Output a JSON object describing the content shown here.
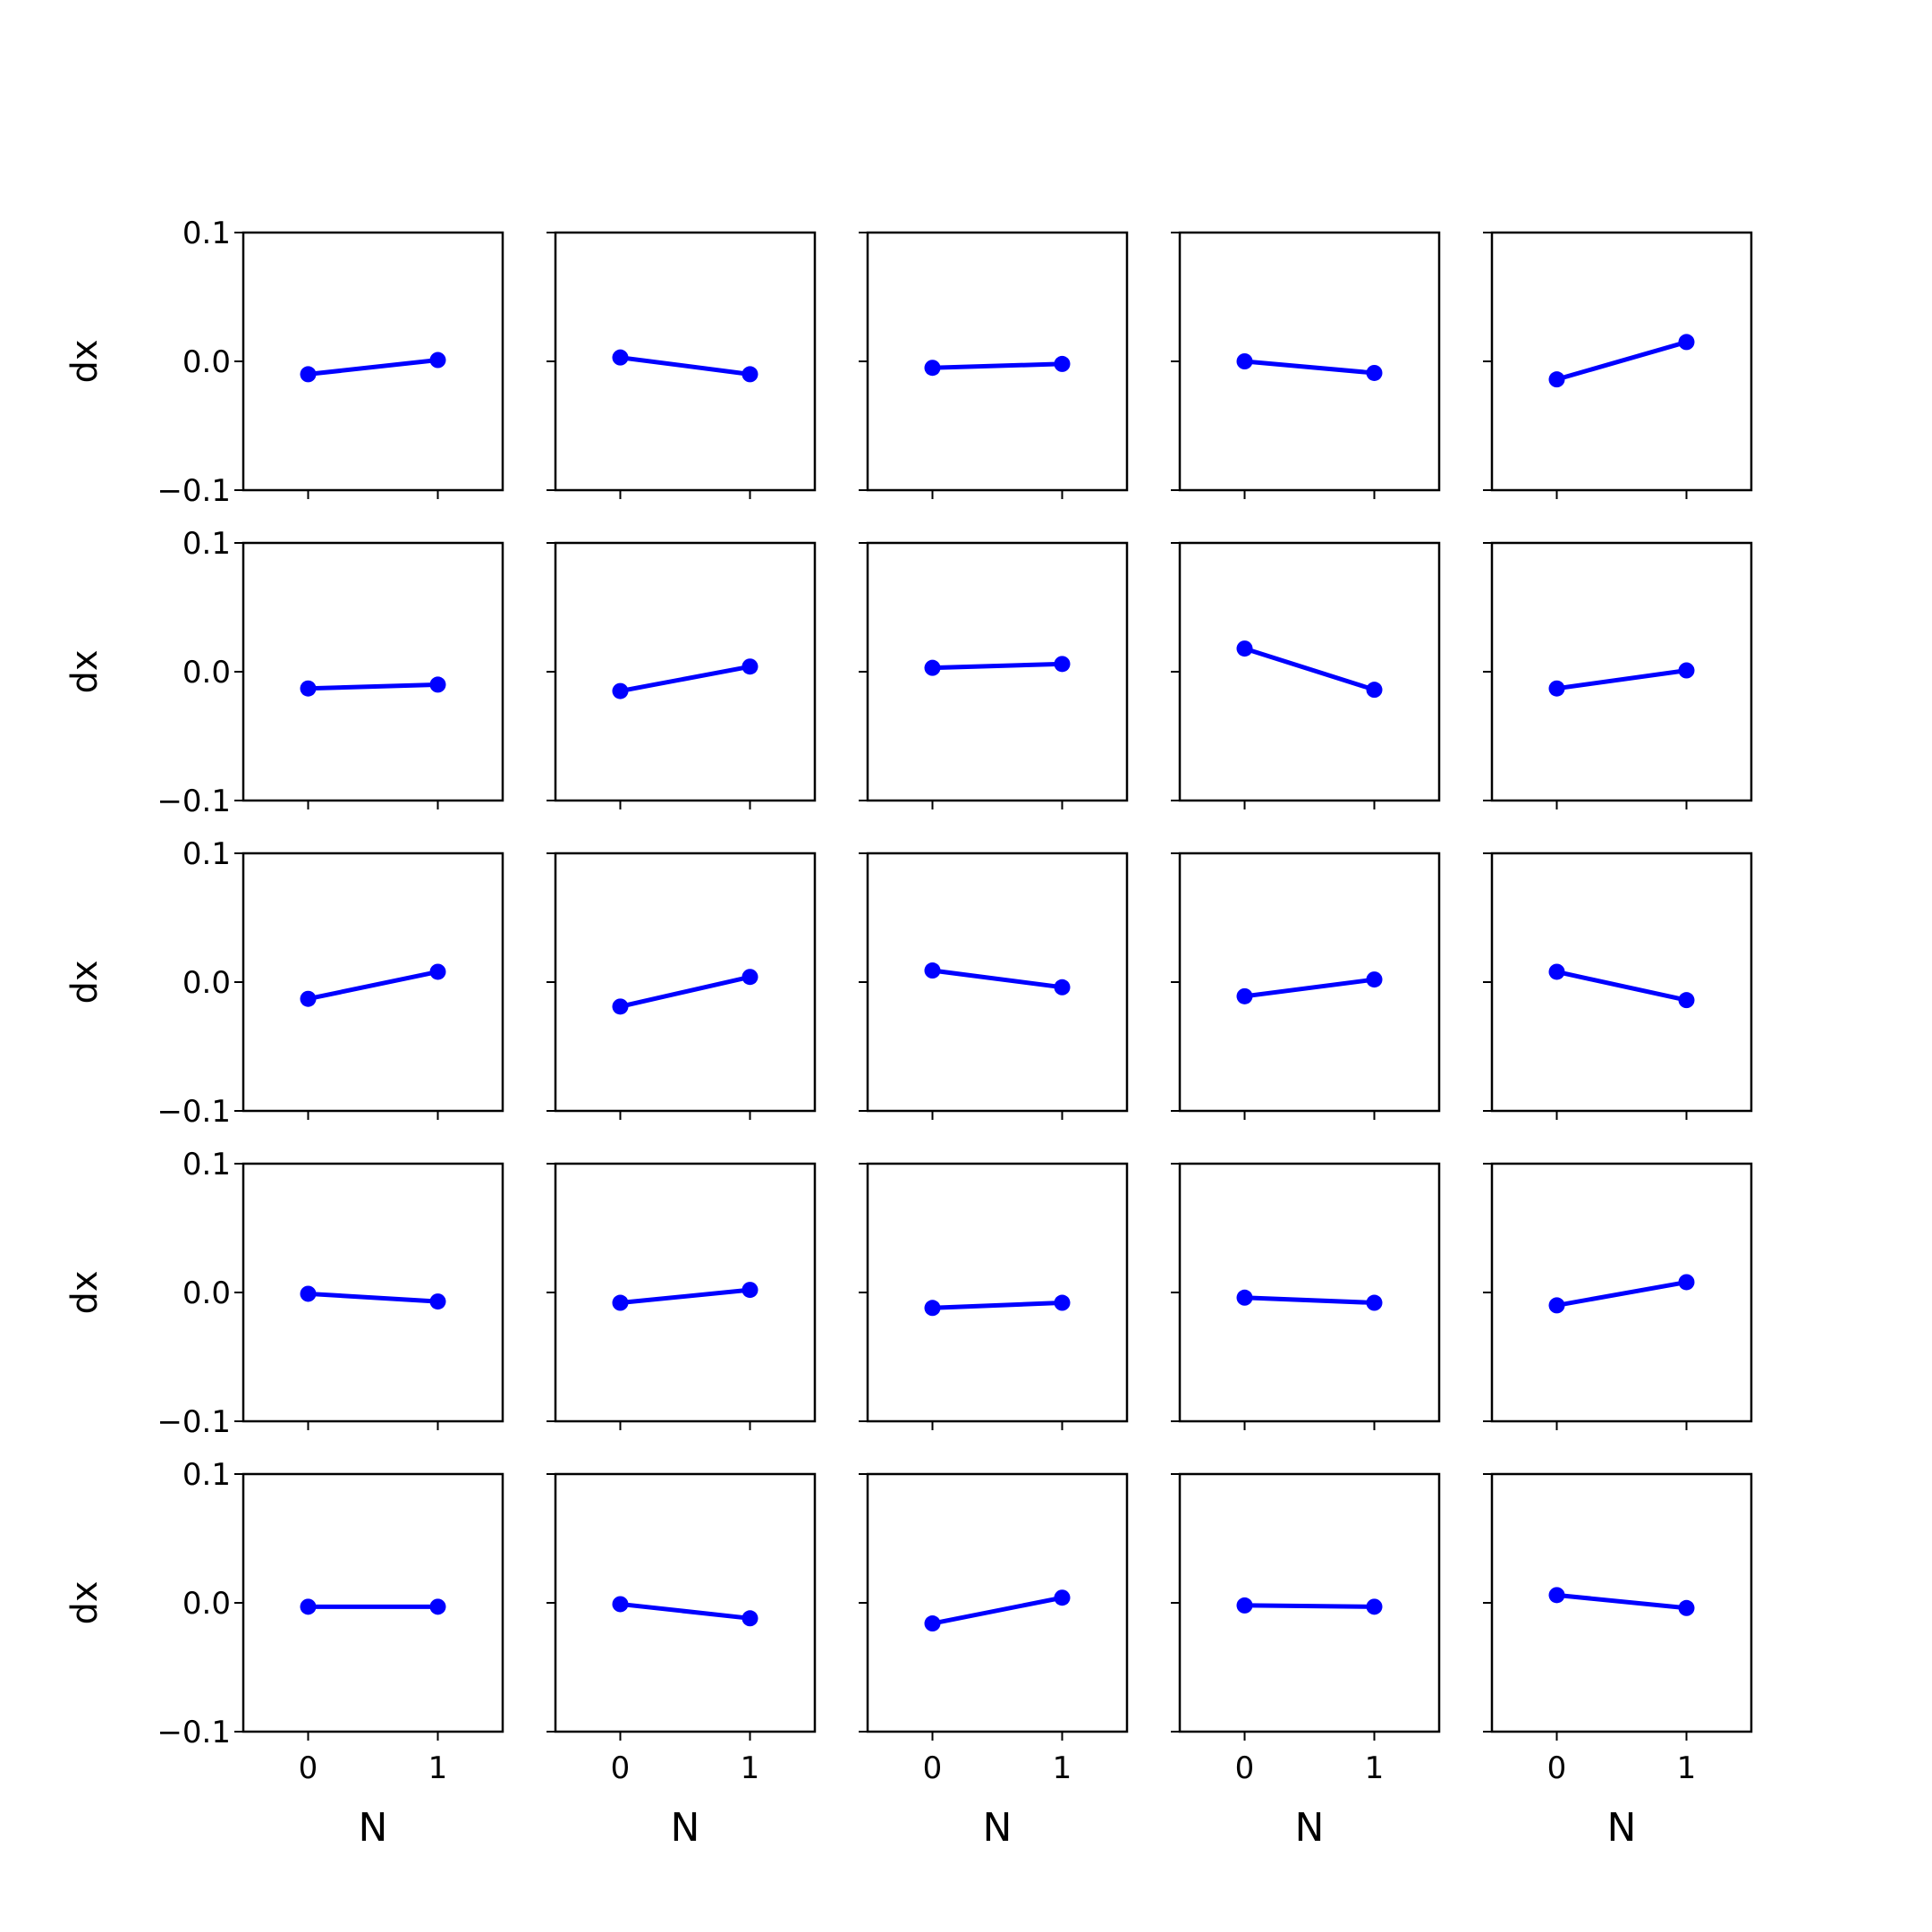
{
  "figure": {
    "rows": 5,
    "cols": 5,
    "xlabel": "N",
    "ylabel": "dx",
    "line_color": "#0000ff",
    "xticks": [
      0,
      1
    ],
    "xtick_labels": [
      "0",
      "1"
    ],
    "yticks": [
      0.1,
      0.0,
      -0.1
    ],
    "ytick_labels": [
      "0.1",
      "0.0",
      "−0.1"
    ]
  },
  "chart_data": [
    {
      "type": "line",
      "x": [
        0,
        1
      ],
      "y": [
        -0.01,
        0.001
      ],
      "xlim": [
        -0.5,
        1.5
      ],
      "ylim": [
        -0.1,
        0.1
      ],
      "xlabel": "",
      "ylabel": "dx"
    },
    {
      "type": "line",
      "x": [
        0,
        1
      ],
      "y": [
        0.003,
        -0.01
      ],
      "xlim": [
        -0.5,
        1.5
      ],
      "ylim": [
        -0.1,
        0.1
      ],
      "xlabel": "",
      "ylabel": ""
    },
    {
      "type": "line",
      "x": [
        0,
        1
      ],
      "y": [
        -0.005,
        -0.002
      ],
      "xlim": [
        -0.5,
        1.5
      ],
      "ylim": [
        -0.1,
        0.1
      ],
      "xlabel": "",
      "ylabel": ""
    },
    {
      "type": "line",
      "x": [
        0,
        1
      ],
      "y": [
        0.0,
        -0.009
      ],
      "xlim": [
        -0.5,
        1.5
      ],
      "ylim": [
        -0.1,
        0.1
      ],
      "xlabel": "",
      "ylabel": ""
    },
    {
      "type": "line",
      "x": [
        0,
        1
      ],
      "y": [
        -0.014,
        0.015
      ],
      "xlim": [
        -0.5,
        1.5
      ],
      "ylim": [
        -0.1,
        0.1
      ],
      "xlabel": "",
      "ylabel": ""
    },
    {
      "type": "line",
      "x": [
        0,
        1
      ],
      "y": [
        -0.013,
        -0.01
      ],
      "xlim": [
        -0.5,
        1.5
      ],
      "ylim": [
        -0.1,
        0.1
      ],
      "xlabel": "",
      "ylabel": "dx"
    },
    {
      "type": "line",
      "x": [
        0,
        1
      ],
      "y": [
        -0.015,
        0.004
      ],
      "xlim": [
        -0.5,
        1.5
      ],
      "ylim": [
        -0.1,
        0.1
      ],
      "xlabel": "",
      "ylabel": ""
    },
    {
      "type": "line",
      "x": [
        0,
        1
      ],
      "y": [
        0.003,
        0.006
      ],
      "xlim": [
        -0.5,
        1.5
      ],
      "ylim": [
        -0.1,
        0.1
      ],
      "xlabel": "",
      "ylabel": ""
    },
    {
      "type": "line",
      "x": [
        0,
        1
      ],
      "y": [
        0.018,
        -0.014
      ],
      "xlim": [
        -0.5,
        1.5
      ],
      "ylim": [
        -0.1,
        0.1
      ],
      "xlabel": "",
      "ylabel": ""
    },
    {
      "type": "line",
      "x": [
        0,
        1
      ],
      "y": [
        -0.013,
        0.001
      ],
      "xlim": [
        -0.5,
        1.5
      ],
      "ylim": [
        -0.1,
        0.1
      ],
      "xlabel": "",
      "ylabel": ""
    },
    {
      "type": "line",
      "x": [
        0,
        1
      ],
      "y": [
        -0.013,
        0.008
      ],
      "xlim": [
        -0.5,
        1.5
      ],
      "ylim": [
        -0.1,
        0.1
      ],
      "xlabel": "",
      "ylabel": "dx"
    },
    {
      "type": "line",
      "x": [
        0,
        1
      ],
      "y": [
        -0.019,
        0.004
      ],
      "xlim": [
        -0.5,
        1.5
      ],
      "ylim": [
        -0.1,
        0.1
      ],
      "xlabel": "",
      "ylabel": ""
    },
    {
      "type": "line",
      "x": [
        0,
        1
      ],
      "y": [
        0.009,
        -0.004
      ],
      "xlim": [
        -0.5,
        1.5
      ],
      "ylim": [
        -0.1,
        0.1
      ],
      "xlabel": "",
      "ylabel": ""
    },
    {
      "type": "line",
      "x": [
        0,
        1
      ],
      "y": [
        -0.011,
        0.002
      ],
      "xlim": [
        -0.5,
        1.5
      ],
      "ylim": [
        -0.1,
        0.1
      ],
      "xlabel": "",
      "ylabel": ""
    },
    {
      "type": "line",
      "x": [
        0,
        1
      ],
      "y": [
        0.008,
        -0.014
      ],
      "xlim": [
        -0.5,
        1.5
      ],
      "ylim": [
        -0.1,
        0.1
      ],
      "xlabel": "",
      "ylabel": ""
    },
    {
      "type": "line",
      "x": [
        0,
        1
      ],
      "y": [
        -0.001,
        -0.007
      ],
      "xlim": [
        -0.5,
        1.5
      ],
      "ylim": [
        -0.1,
        0.1
      ],
      "xlabel": "",
      "ylabel": "dx"
    },
    {
      "type": "line",
      "x": [
        0,
        1
      ],
      "y": [
        -0.008,
        0.002
      ],
      "xlim": [
        -0.5,
        1.5
      ],
      "ylim": [
        -0.1,
        0.1
      ],
      "xlabel": "",
      "ylabel": ""
    },
    {
      "type": "line",
      "x": [
        0,
        1
      ],
      "y": [
        -0.012,
        -0.008
      ],
      "xlim": [
        -0.5,
        1.5
      ],
      "ylim": [
        -0.1,
        0.1
      ],
      "xlabel": "",
      "ylabel": ""
    },
    {
      "type": "line",
      "x": [
        0,
        1
      ],
      "y": [
        -0.004,
        -0.008
      ],
      "xlim": [
        -0.5,
        1.5
      ],
      "ylim": [
        -0.1,
        0.1
      ],
      "xlabel": "",
      "ylabel": ""
    },
    {
      "type": "line",
      "x": [
        0,
        1
      ],
      "y": [
        -0.01,
        0.008
      ],
      "xlim": [
        -0.5,
        1.5
      ],
      "ylim": [
        -0.1,
        0.1
      ],
      "xlabel": "",
      "ylabel": ""
    },
    {
      "type": "line",
      "x": [
        0,
        1
      ],
      "y": [
        -0.003,
        -0.003
      ],
      "xlim": [
        -0.5,
        1.5
      ],
      "ylim": [
        -0.1,
        0.1
      ],
      "xlabel": "N",
      "ylabel": "dx"
    },
    {
      "type": "line",
      "x": [
        0,
        1
      ],
      "y": [
        -0.001,
        -0.012
      ],
      "xlim": [
        -0.5,
        1.5
      ],
      "ylim": [
        -0.1,
        0.1
      ],
      "xlabel": "N",
      "ylabel": ""
    },
    {
      "type": "line",
      "x": [
        0,
        1
      ],
      "y": [
        -0.016,
        0.004
      ],
      "xlim": [
        -0.5,
        1.5
      ],
      "ylim": [
        -0.1,
        0.1
      ],
      "xlabel": "N",
      "ylabel": ""
    },
    {
      "type": "line",
      "x": [
        0,
        1
      ],
      "y": [
        -0.002,
        -0.003
      ],
      "xlim": [
        -0.5,
        1.5
      ],
      "ylim": [
        -0.1,
        0.1
      ],
      "xlabel": "N",
      "ylabel": ""
    },
    {
      "type": "line",
      "x": [
        0,
        1
      ],
      "y": [
        0.006,
        -0.004
      ],
      "xlim": [
        -0.5,
        1.5
      ],
      "ylim": [
        -0.1,
        0.1
      ],
      "xlabel": "N",
      "ylabel": ""
    }
  ]
}
